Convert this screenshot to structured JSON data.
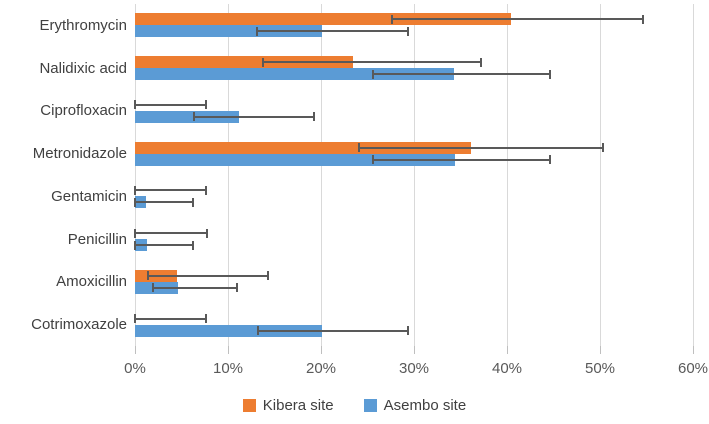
{
  "chart_data": {
    "type": "bar",
    "orientation": "horizontal",
    "title": "",
    "xlabel": "",
    "ylabel": "",
    "xlim": [
      0,
      60
    ],
    "x_tick_values": [
      0,
      10,
      20,
      30,
      40,
      50,
      60
    ],
    "x_tick_labels": [
      "0%",
      "10%",
      "20%",
      "30%",
      "40%",
      "50%",
      "60%"
    ],
    "grid": "vertical-on",
    "legend_position": "bottom-center",
    "categories": [
      "Erythromycin",
      "Nalidixic acid",
      "Ciprofloxacin",
      "Metronidazole",
      "Gentamicin",
      "Penicillin",
      "Amoxicillin",
      "Cotrimoxazole"
    ],
    "series": [
      {
        "name": "Kibera site",
        "color": "#ED7D31",
        "values": [
          40.4,
          23.4,
          0,
          36.1,
          0,
          0,
          4.5,
          0
        ],
        "error_low": [
          27.6,
          13.8,
          0,
          24.1,
          0,
          0,
          1.4,
          0
        ],
        "error_high": [
          54.6,
          37.2,
          7.6,
          50.3,
          7.6,
          7.7,
          14.3,
          7.6
        ]
      },
      {
        "name": "Asembo site",
        "color": "#5B9BD5",
        "values": [
          20.1,
          34.3,
          11.2,
          34.4,
          1.2,
          1.3,
          4.6,
          20.1
        ],
        "error_low": [
          13.1,
          25.6,
          6.3,
          25.6,
          0,
          0,
          1.9,
          13.2
        ],
        "error_high": [
          29.4,
          44.6,
          19.2,
          44.6,
          6.2,
          6.2,
          11.0,
          29.4
        ]
      }
    ],
    "error_bar_color": "#595959",
    "gridline_color": "#d9d9d9",
    "axis_text_color": "#595959",
    "category_text_color": "#404040"
  }
}
